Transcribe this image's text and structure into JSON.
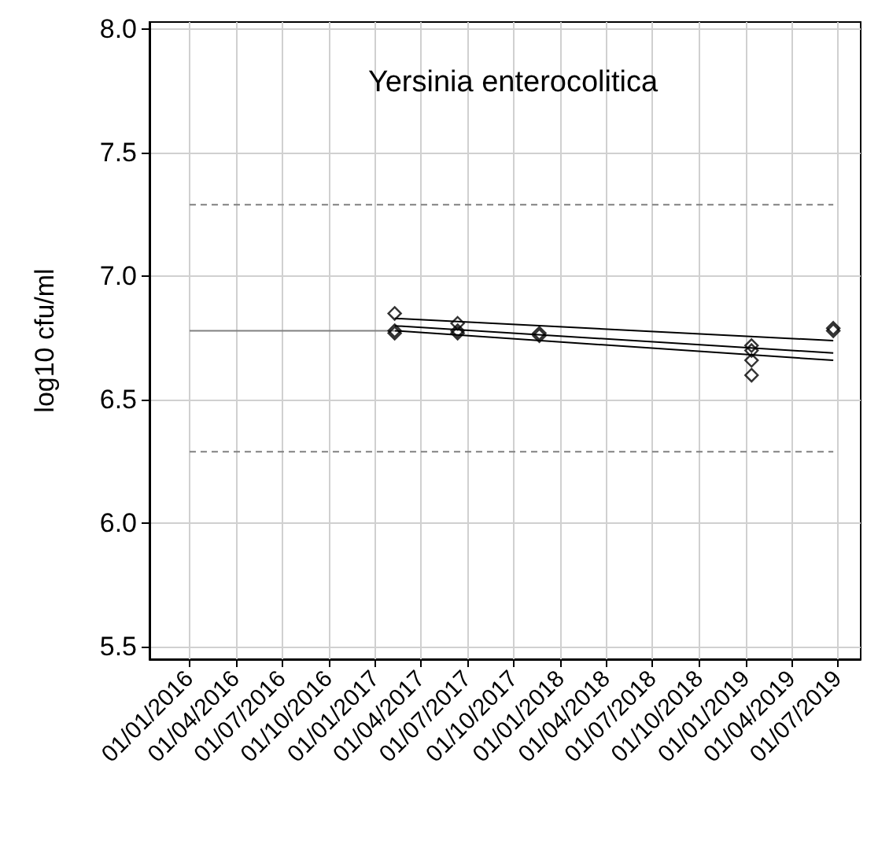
{
  "chart_data": {
    "type": "scatter",
    "title": "Yersinia enterocolitica",
    "ylabel": "log10 cfu/ml",
    "xlim": [
      "2015-10-14",
      "2019-08-15"
    ],
    "xticks": [
      {
        "value": "2016-01-01",
        "label": "01/01/2016"
      },
      {
        "value": "2016-04-01",
        "label": "01/04/2016"
      },
      {
        "value": "2016-07-01",
        "label": "01/07/2016"
      },
      {
        "value": "2016-10-01",
        "label": "01/10/2016"
      },
      {
        "value": "2017-01-01",
        "label": "01/01/2017"
      },
      {
        "value": "2017-04-01",
        "label": "01/04/2017"
      },
      {
        "value": "2017-07-01",
        "label": "01/07/2017"
      },
      {
        "value": "2017-10-01",
        "label": "01/10/2017"
      },
      {
        "value": "2018-01-01",
        "label": "01/01/2018"
      },
      {
        "value": "2018-04-01",
        "label": "01/04/2018"
      },
      {
        "value": "2018-07-01",
        "label": "01/07/2018"
      },
      {
        "value": "2018-10-01",
        "label": "01/10/2018"
      },
      {
        "value": "2019-01-01",
        "label": "01/01/2019"
      },
      {
        "value": "2019-04-01",
        "label": "01/04/2019"
      },
      {
        "value": "2019-07-01",
        "label": "01/07/2019"
      }
    ],
    "ylim": [
      5.45,
      8.03
    ],
    "yticks": [
      {
        "value": 5.5,
        "label": "5.5"
      },
      {
        "value": 6,
        "label": "6.0"
      },
      {
        "value": 6.5,
        "label": "6.5"
      },
      {
        "value": 7,
        "label": "7.0"
      },
      {
        "value": 7.5,
        "label": "7.5"
      },
      {
        "value": 8,
        "label": "8.0"
      }
    ],
    "grid": true,
    "series": [
      {
        "color": "#000000",
        "marker": "diamond",
        "x": [
          "2017-02-08",
          "2017-02-08",
          "2017-02-08",
          "2017-06-12",
          "2017-06-12",
          "2017-06-12",
          "2017-11-20",
          "2017-11-20",
          "2019-01-12",
          "2019-01-12",
          "2019-01-12",
          "2019-01-12",
          "2019-06-22",
          "2019-06-22"
        ],
        "values": [
          6.85,
          6.78,
          6.77,
          6.81,
          6.78,
          6.77,
          6.77,
          6.76,
          6.72,
          6.7,
          6.66,
          6.6,
          6.79,
          6.78
        ]
      },
      {
        "type": "line",
        "color": "#000000",
        "marker": "none",
        "line_style": "solid",
        "x": [
          "2017-02-08",
          "2019-06-22"
        ],
        "values": [
          6.83,
          6.74
        ]
      },
      {
        "type": "line",
        "color": "#000000",
        "marker": "none",
        "line_style": "solid",
        "x": [
          "2017-02-08",
          "2019-06-22"
        ],
        "values": [
          6.8,
          6.69
        ]
      },
      {
        "type": "line",
        "color": "#000000",
        "marker": "none",
        "line_style": "solid",
        "x": [
          "2017-02-08",
          "2019-06-22"
        ],
        "values": [
          6.78,
          6.66
        ]
      },
      {
        "type": "line",
        "color": "#808080",
        "marker": "none",
        "line_style": "solid",
        "x": [
          "2016-01-01",
          "2017-02-08"
        ],
        "values": [
          6.78,
          6.78
        ]
      },
      {
        "type": "line",
        "color": "#808080",
        "marker": "none",
        "line_style": "dashed",
        "x": [
          "2016-01-01",
          "2019-06-22"
        ],
        "values": [
          7.29,
          7.29
        ]
      },
      {
        "type": "line",
        "color": "#808080",
        "marker": "none",
        "line_style": "dashed",
        "x": [
          "2016-01-01",
          "2019-06-22"
        ],
        "values": [
          6.29,
          6.29
        ]
      }
    ]
  }
}
